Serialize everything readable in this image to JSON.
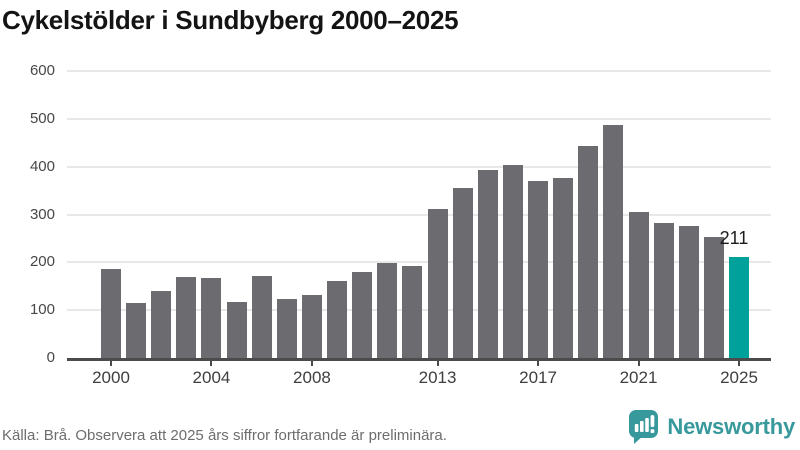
{
  "title": "Cykelstölder i Sundbyberg 2000–2025",
  "chart_data": {
    "type": "bar",
    "title": "Cykelstölder i Sundbyberg 2000–2025",
    "x": [
      2000,
      2001,
      2002,
      2003,
      2004,
      2005,
      2006,
      2007,
      2008,
      2009,
      2010,
      2011,
      2012,
      2013,
      2014,
      2015,
      2016,
      2017,
      2018,
      2019,
      2020,
      2021,
      2022,
      2023,
      2024,
      2025
    ],
    "values": [
      187,
      115,
      141,
      170,
      168,
      117,
      172,
      124,
      132,
      161,
      180,
      199,
      193,
      312,
      355,
      394,
      404,
      371,
      377,
      443,
      488,
      306,
      283,
      275,
      252,
      211
    ],
    "highlight_index": 25,
    "highlight_label": "211",
    "xticks": [
      2000,
      2004,
      2008,
      2013,
      2017,
      2021,
      2025
    ],
    "yticks": [
      0,
      100,
      200,
      300,
      400,
      500,
      600
    ],
    "ylim": [
      0,
      600
    ],
    "grid": true,
    "legend": "none",
    "bar_color": "#6c6c70",
    "highlight_color": "#00a19a"
  },
  "footer": {
    "source": "Källa: Brå. Observera att 2025 års siffror fortfarande är preliminära.",
    "brand": {
      "name": "Newsworthy",
      "color": "#38999c",
      "icon": "newsworthy-speech-bubble-chart-icon"
    }
  }
}
